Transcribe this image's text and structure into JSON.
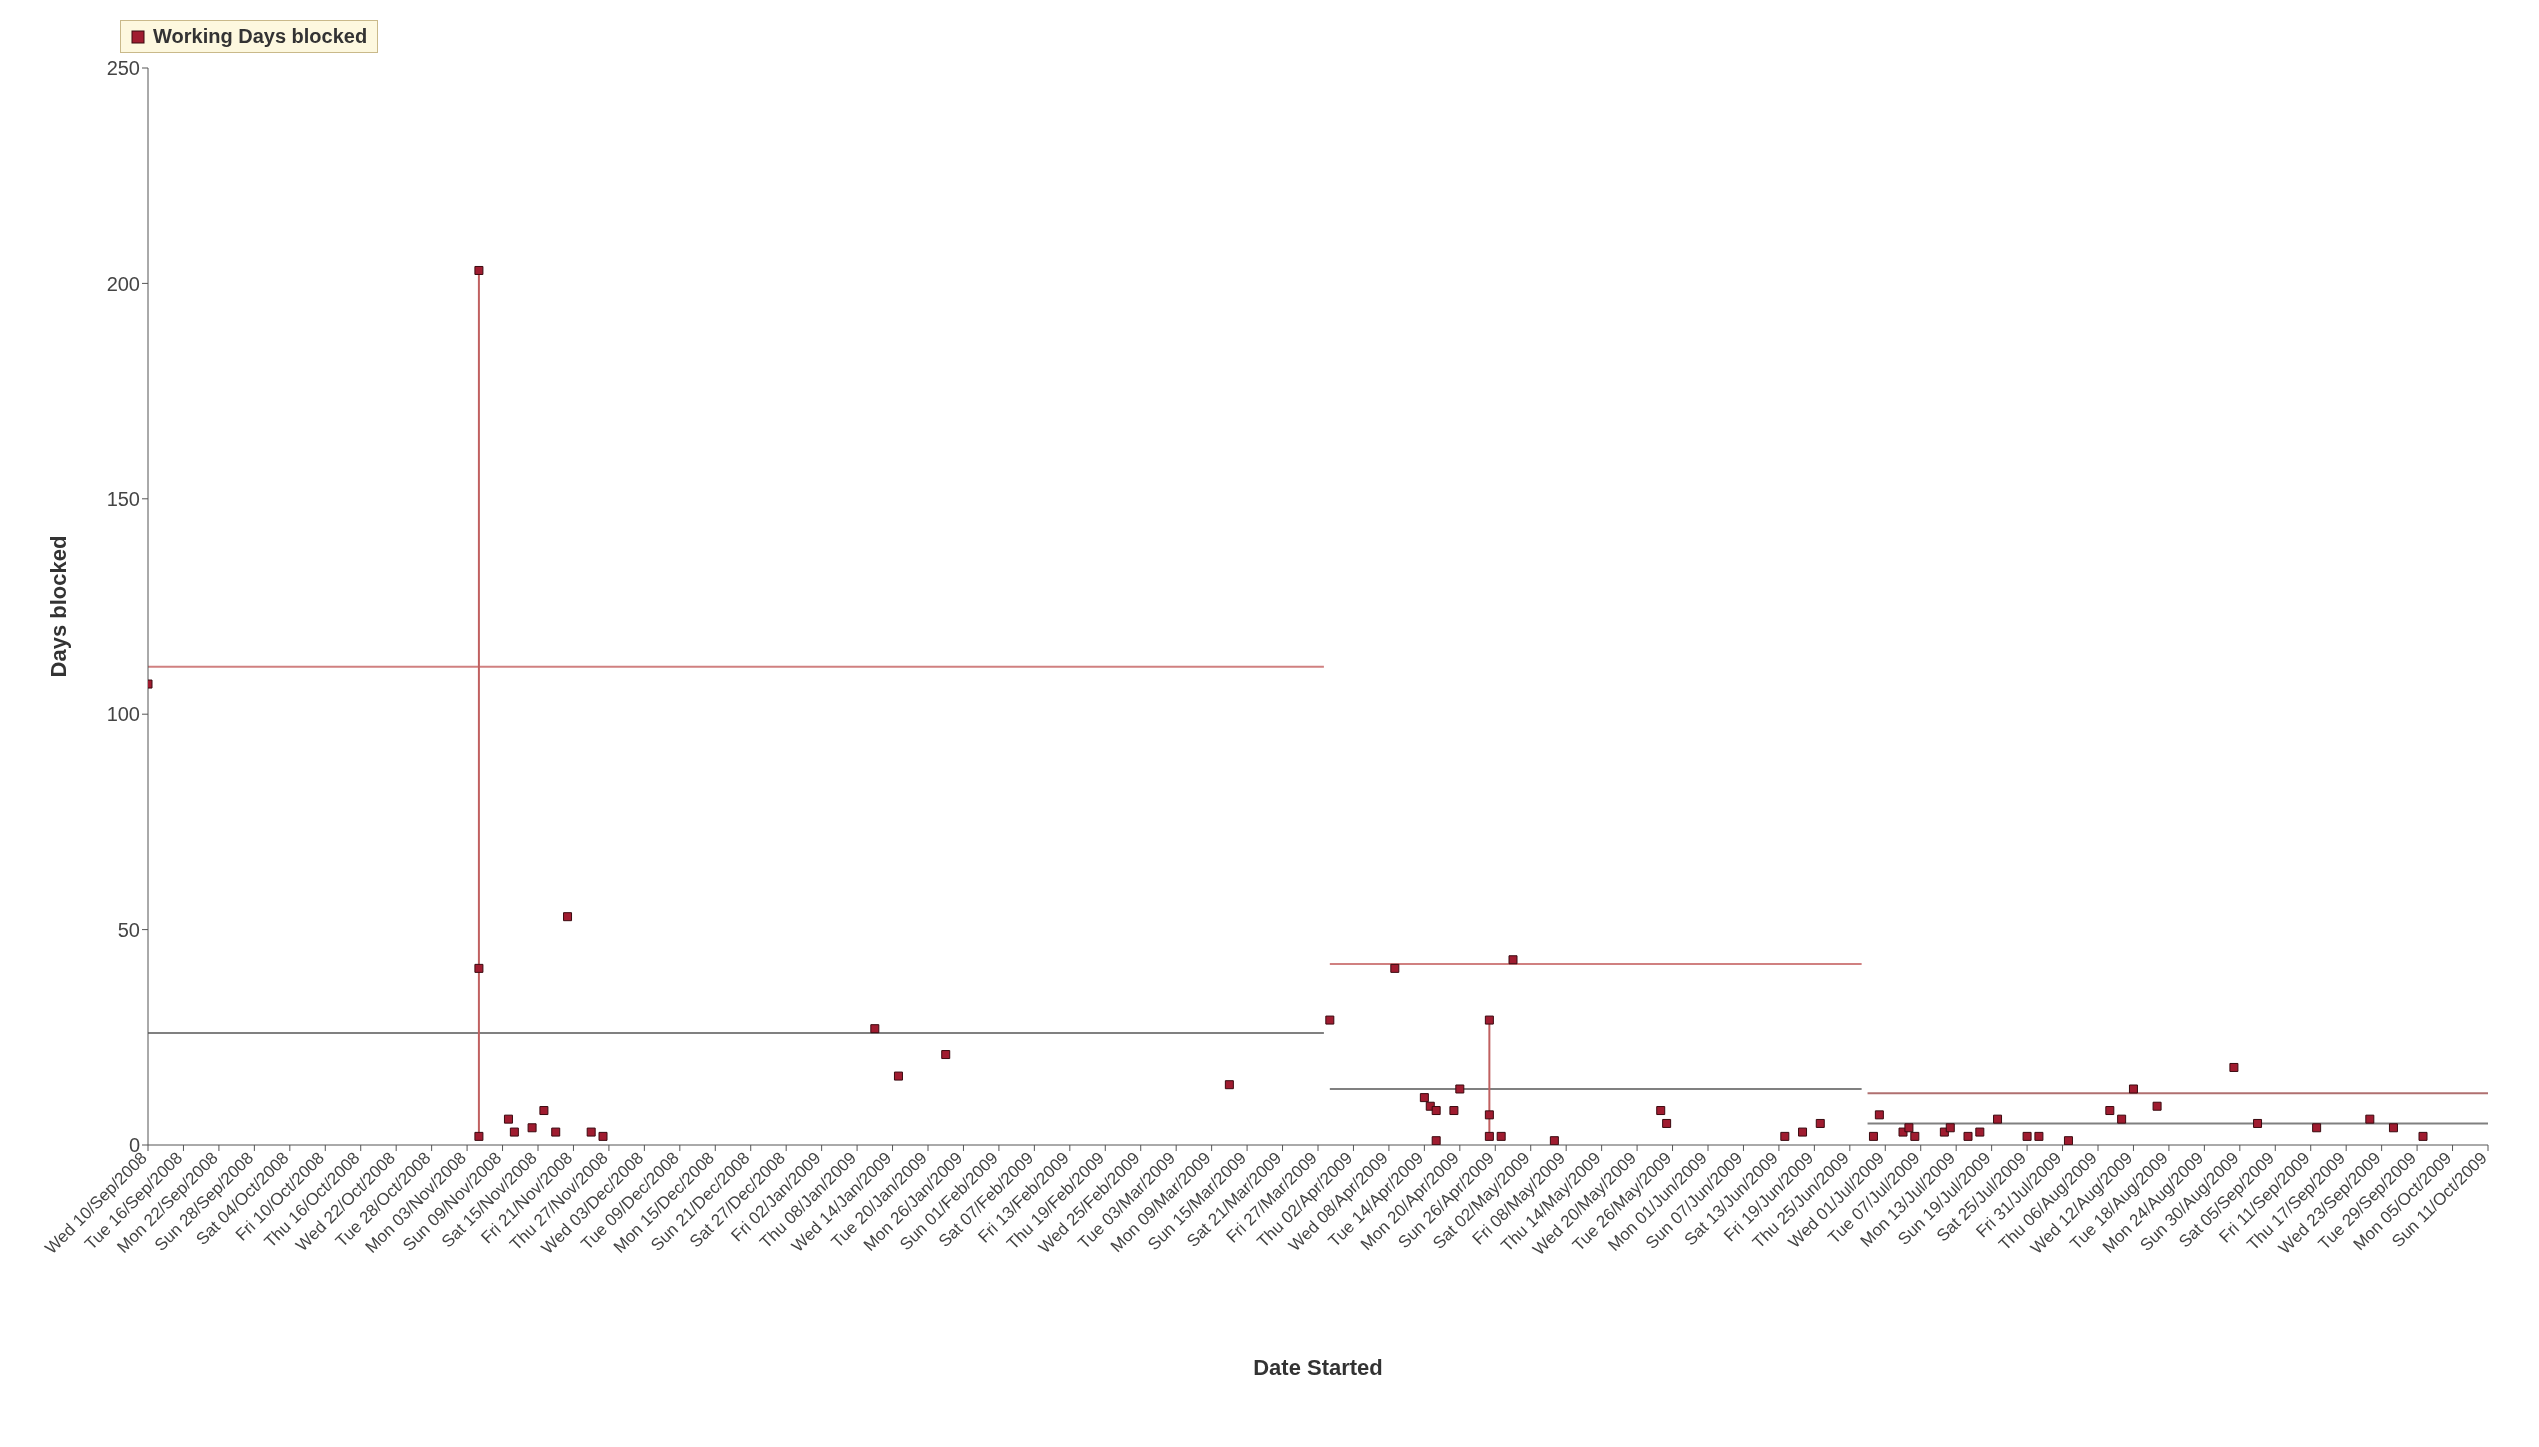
{
  "chart_data": {
    "type": "scatter",
    "xlabel": "Date Started",
    "ylabel": "Days blocked",
    "xlim": [
      "2008-09-10",
      "2009-10-11"
    ],
    "ylim": [
      0,
      250
    ],
    "yticks": [
      0,
      50,
      100,
      150,
      200,
      250
    ],
    "xticks": [
      {
        "value": "2008-09-10",
        "label": "Wed 10/Sep/2008"
      },
      {
        "value": "2008-09-16",
        "label": "Tue 16/Sep/2008"
      },
      {
        "value": "2008-09-22",
        "label": "Mon 22/Sep/2008"
      },
      {
        "value": "2008-09-28",
        "label": "Sun 28/Sep/2008"
      },
      {
        "value": "2008-10-04",
        "label": "Sat 04/Oct/2008"
      },
      {
        "value": "2008-10-10",
        "label": "Fri 10/Oct/2008"
      },
      {
        "value": "2008-10-16",
        "label": "Thu 16/Oct/2008"
      },
      {
        "value": "2008-10-22",
        "label": "Wed 22/Oct/2008"
      },
      {
        "value": "2008-10-28",
        "label": "Tue 28/Oct/2008"
      },
      {
        "value": "2008-11-03",
        "label": "Mon 03/Nov/2008"
      },
      {
        "value": "2008-11-09",
        "label": "Sun 09/Nov/2008"
      },
      {
        "value": "2008-11-15",
        "label": "Sat 15/Nov/2008"
      },
      {
        "value": "2008-11-21",
        "label": "Fri 21/Nov/2008"
      },
      {
        "value": "2008-11-27",
        "label": "Thu 27/Nov/2008"
      },
      {
        "value": "2008-12-03",
        "label": "Wed 03/Dec/2008"
      },
      {
        "value": "2008-12-09",
        "label": "Tue 09/Dec/2008"
      },
      {
        "value": "2008-12-15",
        "label": "Mon 15/Dec/2008"
      },
      {
        "value": "2008-12-21",
        "label": "Sun 21/Dec/2008"
      },
      {
        "value": "2008-12-27",
        "label": "Sat 27/Dec/2008"
      },
      {
        "value": "2009-01-02",
        "label": "Fri 02/Jan/2009"
      },
      {
        "value": "2009-01-08",
        "label": "Thu 08/Jan/2009"
      },
      {
        "value": "2009-01-14",
        "label": "Wed 14/Jan/2009"
      },
      {
        "value": "2009-01-20",
        "label": "Tue 20/Jan/2009"
      },
      {
        "value": "2009-01-26",
        "label": "Mon 26/Jan/2009"
      },
      {
        "value": "2009-02-01",
        "label": "Sun 01/Feb/2009"
      },
      {
        "value": "2009-02-07",
        "label": "Sat 07/Feb/2009"
      },
      {
        "value": "2009-02-13",
        "label": "Fri 13/Feb/2009"
      },
      {
        "value": "2009-02-19",
        "label": "Thu 19/Feb/2009"
      },
      {
        "value": "2009-02-25",
        "label": "Wed 25/Feb/2009"
      },
      {
        "value": "2009-03-03",
        "label": "Tue 03/Mar/2009"
      },
      {
        "value": "2009-03-09",
        "label": "Mon 09/Mar/2009"
      },
      {
        "value": "2009-03-15",
        "label": "Sun 15/Mar/2009"
      },
      {
        "value": "2009-03-21",
        "label": "Sat 21/Mar/2009"
      },
      {
        "value": "2009-03-27",
        "label": "Fri 27/Mar/2009"
      },
      {
        "value": "2009-04-02",
        "label": "Thu 02/Apr/2009"
      },
      {
        "value": "2009-04-08",
        "label": "Wed 08/Apr/2009"
      },
      {
        "value": "2009-04-14",
        "label": "Tue 14/Apr/2009"
      },
      {
        "value": "2009-04-20",
        "label": "Mon 20/Apr/2009"
      },
      {
        "value": "2009-04-26",
        "label": "Sun 26/Apr/2009"
      },
      {
        "value": "2009-05-02",
        "label": "Sat 02/May/2009"
      },
      {
        "value": "2009-05-08",
        "label": "Fri 08/May/2009"
      },
      {
        "value": "2009-05-14",
        "label": "Thu 14/May/2009"
      },
      {
        "value": "2009-05-20",
        "label": "Wed 20/May/2009"
      },
      {
        "value": "2009-05-26",
        "label": "Tue 26/May/2009"
      },
      {
        "value": "2009-06-01",
        "label": "Mon 01/Jun/2009"
      },
      {
        "value": "2009-06-07",
        "label": "Sun 07/Jun/2009"
      },
      {
        "value": "2009-06-13",
        "label": "Sat 13/Jun/2009"
      },
      {
        "value": "2009-06-19",
        "label": "Fri 19/Jun/2009"
      },
      {
        "value": "2009-06-25",
        "label": "Thu 25/Jun/2009"
      },
      {
        "value": "2009-07-01",
        "label": "Wed 01/Jul/2009"
      },
      {
        "value": "2009-07-07",
        "label": "Tue 07/Jul/2009"
      },
      {
        "value": "2009-07-13",
        "label": "Mon 13/Jul/2009"
      },
      {
        "value": "2009-07-19",
        "label": "Sun 19/Jul/2009"
      },
      {
        "value": "2009-07-25",
        "label": "Sat 25/Jul/2009"
      },
      {
        "value": "2009-07-31",
        "label": "Fri 31/Jul/2009"
      },
      {
        "value": "2009-08-06",
        "label": "Thu 06/Aug/2009"
      },
      {
        "value": "2009-08-12",
        "label": "Wed 12/Aug/2009"
      },
      {
        "value": "2009-08-18",
        "label": "Tue 18/Aug/2009"
      },
      {
        "value": "2009-08-24",
        "label": "Mon 24/Aug/2009"
      },
      {
        "value": "2009-08-30",
        "label": "Sun 30/Aug/2009"
      },
      {
        "value": "2009-09-05",
        "label": "Sat 05/Sep/2009"
      },
      {
        "value": "2009-09-11",
        "label": "Fri 11/Sep/2009"
      },
      {
        "value": "2009-09-17",
        "label": "Thu 17/Sep/2009"
      },
      {
        "value": "2009-09-23",
        "label": "Wed 23/Sep/2009"
      },
      {
        "value": "2009-09-29",
        "label": "Tue 29/Sep/2009"
      },
      {
        "value": "2009-10-05",
        "label": "Mon 05/Oct/2009"
      },
      {
        "value": "2009-10-11",
        "label": "Sun 11/Oct/2009"
      }
    ],
    "legend": "top left",
    "series": [
      {
        "type": "line",
        "color": "#d08080",
        "x": [
          "2008-09-10",
          "2009-03-28"
        ],
        "values": [
          111,
          111
        ]
      },
      {
        "type": "line",
        "color": "#808080",
        "x": [
          "2008-09-10",
          "2009-03-28"
        ],
        "values": [
          26,
          26
        ]
      },
      {
        "type": "line",
        "color": "#d08080",
        "x": [
          "2009-03-29",
          "2009-06-27"
        ],
        "values": [
          42,
          42
        ]
      },
      {
        "type": "line",
        "color": "#808080",
        "x": [
          "2009-03-29",
          "2009-06-27"
        ],
        "values": [
          13,
          13
        ]
      },
      {
        "type": "line",
        "color": "#b07070",
        "x": [
          "2009-06-28",
          "2009-10-11"
        ],
        "values": [
          12,
          12
        ]
      },
      {
        "type": "line",
        "color": "#808080",
        "x": [
          "2009-06-28",
          "2009-10-11"
        ],
        "values": [
          5,
          5
        ]
      },
      {
        "type": "line",
        "color": "#c06060",
        "x": [
          "2008-11-05",
          "2008-11-05"
        ],
        "values": [
          2,
          203
        ]
      },
      {
        "type": "line",
        "color": "#c06060",
        "x": [
          "2009-04-25",
          "2009-04-25"
        ],
        "values": [
          2,
          29
        ]
      },
      {
        "name": "Working Days blocked",
        "marker": "square",
        "color": "#a01c30",
        "x": [
          "2008-09-10",
          "2008-11-05",
          "2008-11-05",
          "2008-11-05",
          "2008-11-10",
          "2008-11-11",
          "2008-11-14",
          "2008-11-16",
          "2008-11-18",
          "2008-11-20",
          "2008-11-24",
          "2008-11-26",
          "2009-01-11",
          "2009-01-15",
          "2009-01-23",
          "2009-03-12",
          "2009-03-29",
          "2009-04-09",
          "2009-04-14",
          "2009-04-15",
          "2009-04-16",
          "2009-04-16",
          "2009-04-19",
          "2009-04-20",
          "2009-04-25",
          "2009-04-25",
          "2009-04-25",
          "2009-04-27",
          "2009-04-29",
          "2009-05-06",
          "2009-05-24",
          "2009-05-25",
          "2009-06-14",
          "2009-06-17",
          "2009-06-20",
          "2009-06-29",
          "2009-06-30",
          "2009-07-04",
          "2009-07-05",
          "2009-07-06",
          "2009-07-11",
          "2009-07-12",
          "2009-07-15",
          "2009-07-17",
          "2009-07-20",
          "2009-07-25",
          "2009-07-27",
          "2009-08-01",
          "2009-08-08",
          "2009-08-10",
          "2009-08-12",
          "2009-08-16",
          "2009-08-29",
          "2009-09-02",
          "2009-09-12",
          "2009-09-21",
          "2009-09-25",
          "2009-09-30"
        ],
        "values": [
          107,
          203,
          41,
          2,
          6,
          3,
          4,
          8,
          3,
          53,
          3,
          2,
          27,
          16,
          21,
          14,
          29,
          41,
          11,
          9,
          8,
          1,
          8,
          13,
          29,
          7,
          2,
          2,
          43,
          1,
          8,
          5,
          2,
          3,
          5,
          2,
          7,
          3,
          4,
          2,
          3,
          4,
          2,
          3,
          6,
          2,
          2,
          1,
          8,
          6,
          13,
          9,
          18,
          5,
          4,
          6,
          4,
          2
        ]
      }
    ]
  }
}
